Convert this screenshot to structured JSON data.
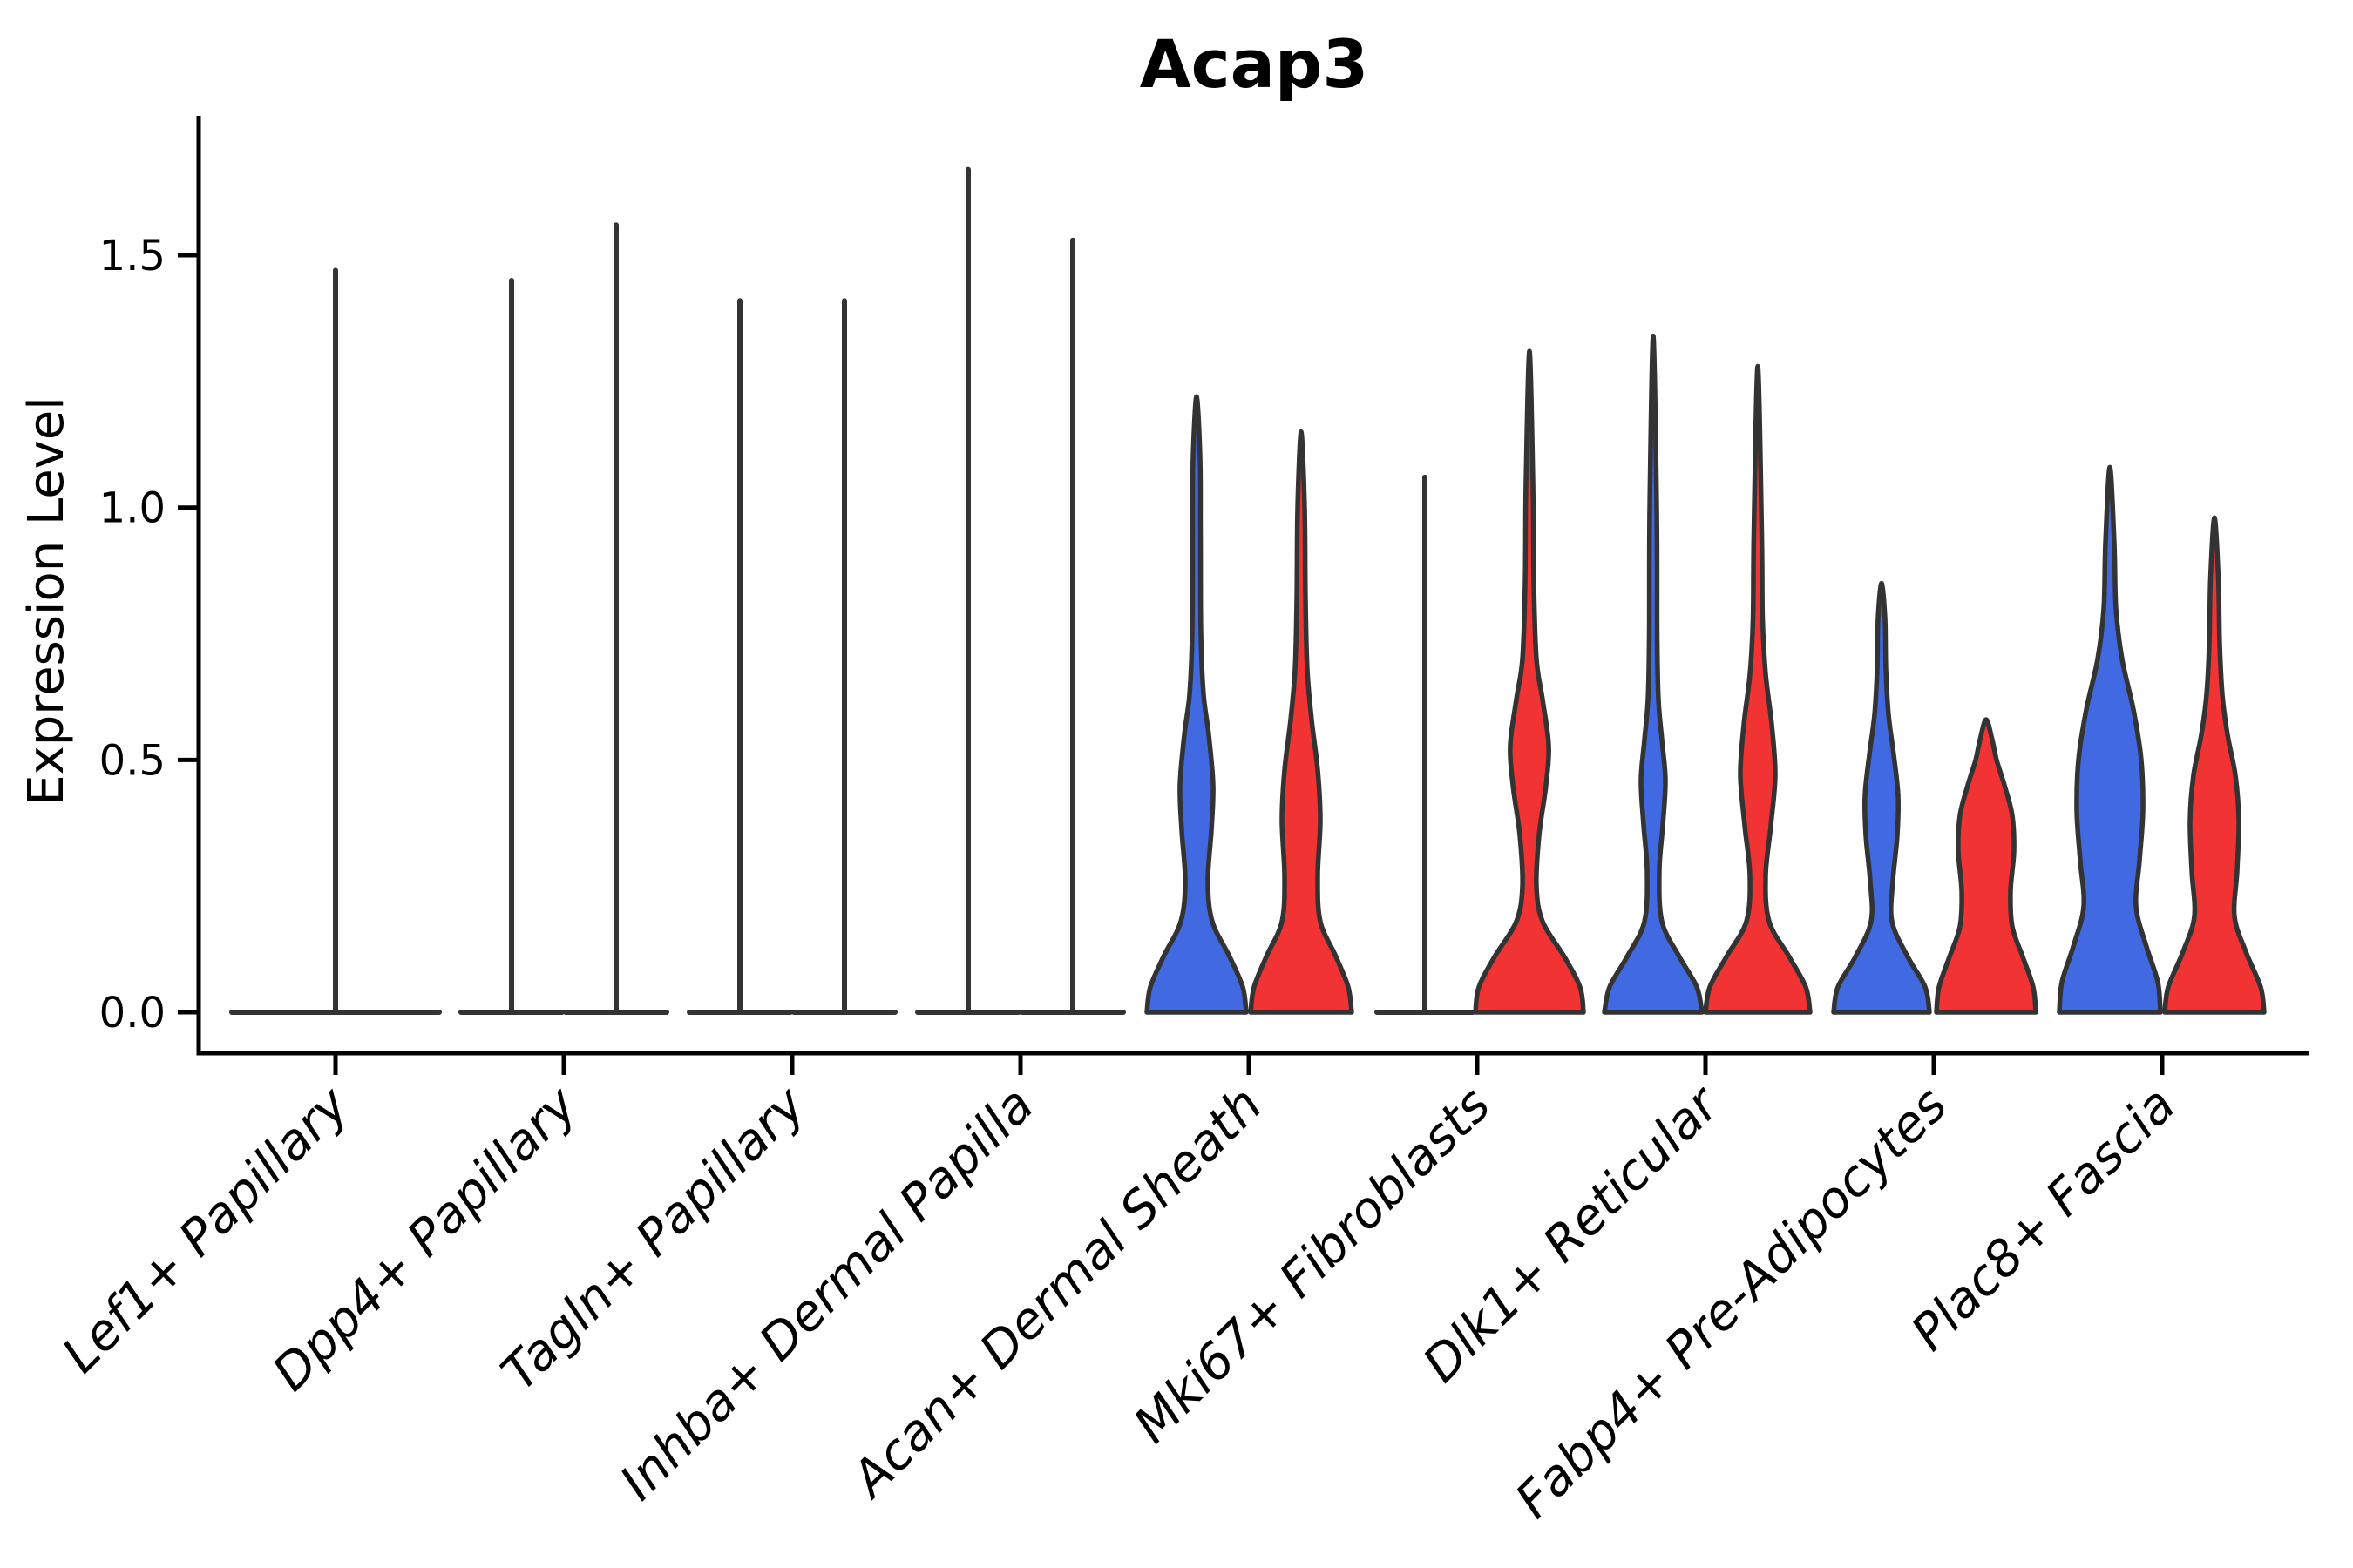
{
  "title": "Acap3",
  "y_axis": {
    "label": "Expression Level",
    "tick_labels": [
      "0.0",
      "0.5",
      "1.0",
      "1.5"
    ],
    "tick_values": [
      0,
      0.5,
      1.0,
      1.5
    ]
  },
  "colors": {
    "blue_fill": "#4169E1",
    "red_fill": "#F23333",
    "violin_outline": "#333333",
    "axis": "#000000",
    "background": "#ffffff"
  },
  "chart_data": {
    "type": "violin",
    "title": "Acap3",
    "xlabel": "",
    "ylabel": "Expression Level",
    "ylim": [
      0,
      1.78
    ],
    "grid": false,
    "legend": "none",
    "categories": [
      "Lef1+ Papillary",
      "Dpp4+ Papillary",
      "Tagln+ Papillary",
      "Inhba+ Dermal Papilla",
      "Acan+ Dermal Sheath",
      "Mki67+ Fibroblasts",
      "Dlk1+ Reticular",
      "Fabp4+ Pre-Adipocytes",
      "Plac8+ Fascia"
    ],
    "groups": [
      {
        "category": "Lef1+ Papillary",
        "violins": [
          {
            "side": "center",
            "fill": "white",
            "style": "spike",
            "max_expression": 1.47,
            "base_halfwidth": 119
          }
        ]
      },
      {
        "category": "Dpp4+ Papillary",
        "violins": [
          {
            "side": "left",
            "fill": "white",
            "style": "spike",
            "max_expression": 1.45,
            "base_halfwidth": 58
          },
          {
            "side": "right",
            "fill": "white",
            "style": "spike",
            "max_expression": 1.56,
            "base_halfwidth": 58
          }
        ]
      },
      {
        "category": "Tagln+ Papillary",
        "violins": [
          {
            "side": "left",
            "fill": "white",
            "style": "spike",
            "max_expression": 1.41,
            "base_halfwidth": 58
          },
          {
            "side": "right",
            "fill": "white",
            "style": "spike",
            "max_expression": 1.41,
            "base_halfwidth": 58
          }
        ]
      },
      {
        "category": "Inhba+ Dermal Papilla",
        "violins": [
          {
            "side": "left",
            "fill": "white",
            "style": "spike",
            "max_expression": 1.67,
            "base_halfwidth": 58
          },
          {
            "side": "right",
            "fill": "white",
            "style": "spike",
            "max_expression": 1.53,
            "base_halfwidth": 58
          }
        ]
      },
      {
        "category": "Acan+ Dermal Sheath",
        "violins": [
          {
            "side": "left",
            "fill": "blue",
            "style": "violin",
            "max_expression": 1.22,
            "profile": [
              [
                0,
                57
              ],
              [
                0.05,
                53
              ],
              [
                0.11,
                38
              ],
              [
                0.18,
                18
              ],
              [
                0.26,
                13
              ],
              [
                0.36,
                17
              ],
              [
                0.45,
                19
              ],
              [
                0.55,
                14
              ],
              [
                0.63,
                8
              ],
              [
                0.75,
                5
              ],
              [
                0.95,
                4.5
              ],
              [
                1.1,
                4
              ],
              [
                1.22,
                0
              ]
            ]
          },
          {
            "side": "right",
            "fill": "red",
            "style": "violin",
            "max_expression": 1.15,
            "profile": [
              [
                0,
                58
              ],
              [
                0.05,
                54
              ],
              [
                0.11,
                40
              ],
              [
                0.18,
                22
              ],
              [
                0.27,
                19
              ],
              [
                0.38,
                22
              ],
              [
                0.48,
                19
              ],
              [
                0.58,
                12
              ],
              [
                0.68,
                7
              ],
              [
                0.82,
                5
              ],
              [
                1.0,
                4
              ],
              [
                1.15,
                0
              ]
            ]
          }
        ]
      },
      {
        "category": "Mki67+ Fibroblasts",
        "violins": [
          {
            "side": "left",
            "fill": "white",
            "style": "spike",
            "max_expression": 1.06,
            "base_halfwidth": 55
          },
          {
            "side": "right",
            "fill": "red",
            "style": "violin",
            "max_expression": 1.31,
            "profile": [
              [
                0,
                62
              ],
              [
                0.05,
                58
              ],
              [
                0.11,
                40
              ],
              [
                0.18,
                15
              ],
              [
                0.25,
                8
              ],
              [
                0.35,
                11
              ],
              [
                0.45,
                19
              ],
              [
                0.53,
                22
              ],
              [
                0.62,
                15
              ],
              [
                0.7,
                8
              ],
              [
                0.85,
                5
              ],
              [
                1.05,
                4
              ],
              [
                1.31,
                0
              ]
            ]
          }
        ]
      },
      {
        "category": "Dlk1+ Reticular",
        "violins": [
          {
            "side": "left",
            "fill": "blue",
            "style": "violin",
            "max_expression": 1.34,
            "profile": [
              [
                0,
                56
              ],
              [
                0.05,
                50
              ],
              [
                0.11,
                30
              ],
              [
                0.18,
                10
              ],
              [
                0.28,
                7
              ],
              [
                0.37,
                11
              ],
              [
                0.46,
                14
              ],
              [
                0.54,
                10
              ],
              [
                0.62,
                6
              ],
              [
                0.75,
                4.5
              ],
              [
                1.0,
                4
              ],
              [
                1.34,
                0
              ]
            ]
          },
          {
            "side": "right",
            "fill": "red",
            "style": "violin",
            "max_expression": 1.28,
            "profile": [
              [
                0,
                60
              ],
              [
                0.05,
                55
              ],
              [
                0.11,
                36
              ],
              [
                0.18,
                13
              ],
              [
                0.27,
                9
              ],
              [
                0.37,
                15
              ],
              [
                0.47,
                20
              ],
              [
                0.57,
                16
              ],
              [
                0.67,
                9
              ],
              [
                0.78,
                5.5
              ],
              [
                0.95,
                4.5
              ],
              [
                1.28,
                0
              ]
            ]
          }
        ]
      },
      {
        "category": "Fabp4+ Pre-Adipocytes",
        "violins": [
          {
            "side": "left",
            "fill": "blue",
            "style": "violin",
            "max_expression": 0.85,
            "profile": [
              [
                0,
                55
              ],
              [
                0.05,
                50
              ],
              [
                0.11,
                30
              ],
              [
                0.18,
                12
              ],
              [
                0.26,
                13
              ],
              [
                0.35,
                18
              ],
              [
                0.43,
                19
              ],
              [
                0.51,
                14
              ],
              [
                0.59,
                8
              ],
              [
                0.68,
                5
              ],
              [
                0.78,
                4
              ],
              [
                0.85,
                0
              ]
            ]
          },
          {
            "side": "right",
            "fill": "red",
            "style": "violin",
            "max_expression": 0.58,
            "profile": [
              [
                0,
                57
              ],
              [
                0.05,
                54
              ],
              [
                0.11,
                42
              ],
              [
                0.17,
                30
              ],
              [
                0.24,
                28
              ],
              [
                0.32,
                32
              ],
              [
                0.39,
                30
              ],
              [
                0.45,
                21
              ],
              [
                0.5,
                12
              ],
              [
                0.54,
                7
              ],
              [
                0.58,
                0
              ]
            ]
          }
        ]
      },
      {
        "category": "Plac8+ Fascia",
        "violins": [
          {
            "side": "left",
            "fill": "blue",
            "style": "violin",
            "max_expression": 1.08,
            "profile": [
              [
                0,
                58
              ],
              [
                0.06,
                55
              ],
              [
                0.13,
                42
              ],
              [
                0.21,
                30
              ],
              [
                0.3,
                34
              ],
              [
                0.4,
                38
              ],
              [
                0.5,
                36
              ],
              [
                0.6,
                27
              ],
              [
                0.7,
                14
              ],
              [
                0.8,
                7
              ],
              [
                0.93,
                5
              ],
              [
                1.08,
                0
              ]
            ]
          },
          {
            "side": "right",
            "fill": "red",
            "style": "violin",
            "max_expression": 0.98,
            "profile": [
              [
                0,
                57
              ],
              [
                0.05,
                53
              ],
              [
                0.12,
                36
              ],
              [
                0.19,
                23
              ],
              [
                0.28,
                26
              ],
              [
                0.38,
                28
              ],
              [
                0.47,
                24
              ],
              [
                0.55,
                15
              ],
              [
                0.63,
                9
              ],
              [
                0.73,
                6
              ],
              [
                0.86,
                4.5
              ],
              [
                0.98,
                0
              ]
            ]
          }
        ]
      }
    ]
  }
}
